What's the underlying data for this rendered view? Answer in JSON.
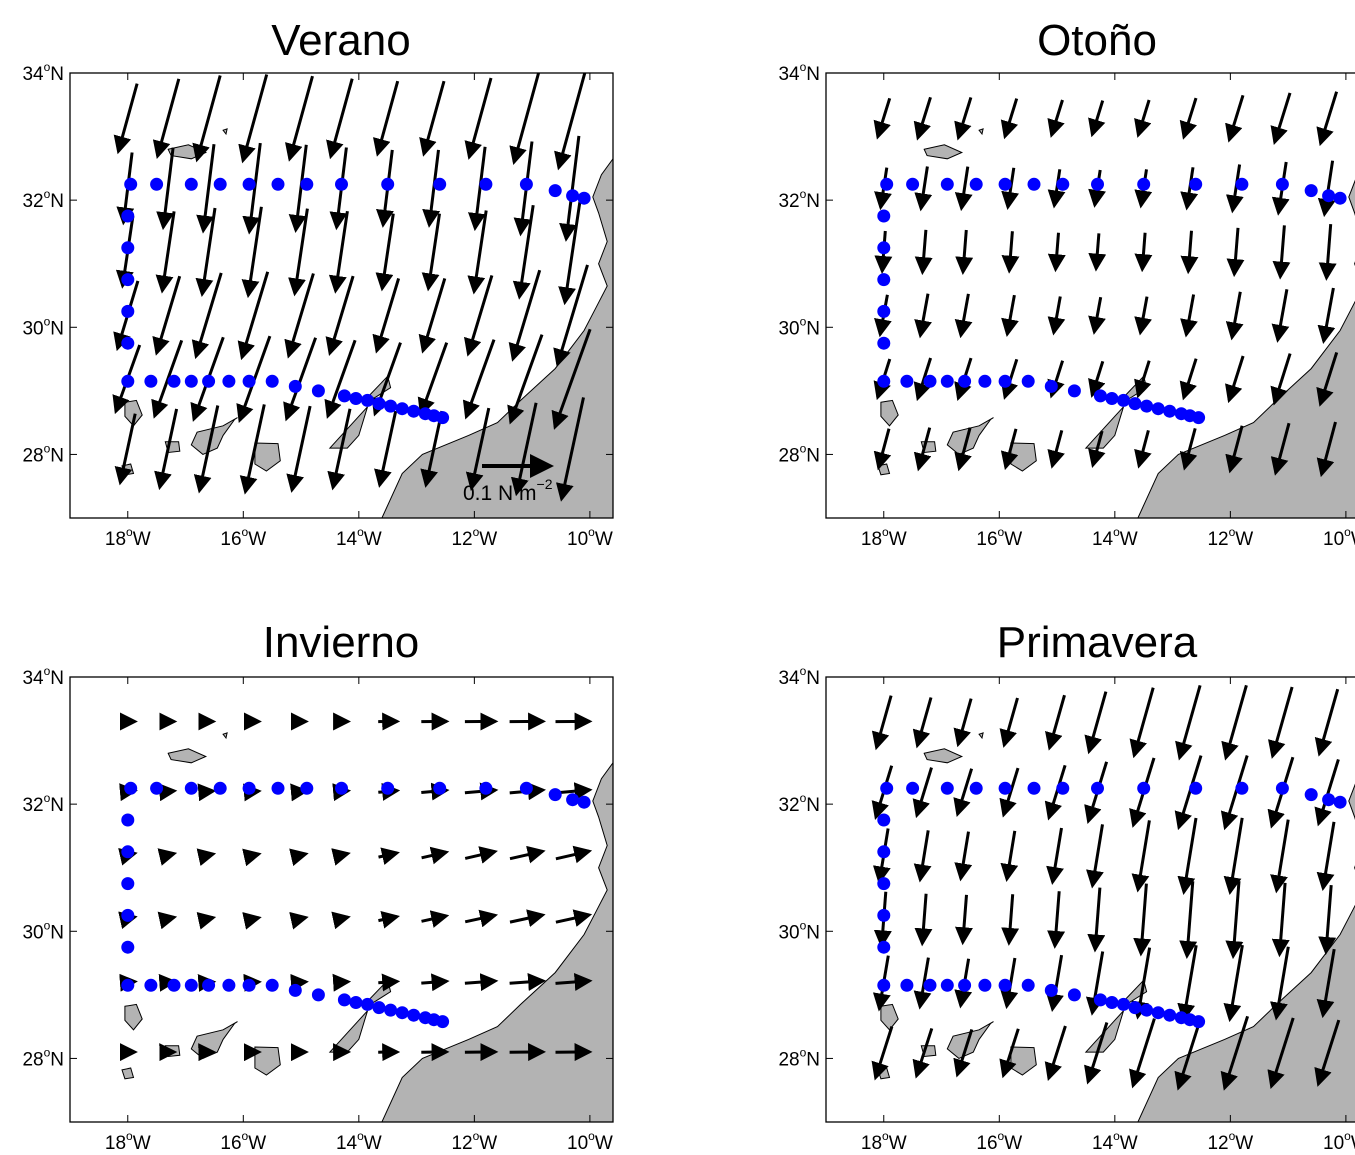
{
  "figure": {
    "scale_label": "0.1 N m",
    "scale_label_exponent": "−2",
    "scale_value_N_per_m2": 0.1,
    "colors": {
      "land": "#b3b3b3",
      "coast": "#000000",
      "stations": "#0000ff",
      "arrows": "#000000"
    }
  },
  "axes": {
    "lon_ticks": [
      {
        "value": -18,
        "deg": "18",
        "dir": "W"
      },
      {
        "value": -16,
        "deg": "16",
        "dir": "W"
      },
      {
        "value": -14,
        "deg": "14",
        "dir": "W"
      },
      {
        "value": -12,
        "deg": "12",
        "dir": "W"
      },
      {
        "value": -10,
        "deg": "10",
        "dir": "W"
      }
    ],
    "lat_ticks": [
      {
        "value": 34,
        "deg": "34",
        "dir": "N"
      },
      {
        "value": 32,
        "deg": "32",
        "dir": "N"
      },
      {
        "value": 30,
        "deg": "30",
        "dir": "N"
      },
      {
        "value": 28,
        "deg": "28",
        "dir": "N"
      }
    ],
    "deg_symbol": "o",
    "lon_range": [
      -19.0,
      -9.6
    ],
    "lat_range": [
      27.0,
      34.0
    ]
  },
  "panels": [
    {
      "id": "verano",
      "title": "Verano",
      "show_scale": true,
      "mean_vector": {
        "u": -0.028,
        "v": -0.12
      }
    },
    {
      "id": "otono",
      "title": "Otoño",
      "show_scale": false,
      "mean_vector": {
        "u": -0.012,
        "v": -0.06
      }
    },
    {
      "id": "invierno",
      "title": "Invierno",
      "show_scale": false,
      "mean_vector": {
        "u": 0.048,
        "v": 0.006
      }
    },
    {
      "id": "primavera",
      "title": "Primavera",
      "show_scale": false,
      "mean_vector": {
        "u": -0.018,
        "v": -0.09
      }
    }
  ],
  "stations": [
    [
      -17.95,
      32.25
    ],
    [
      -17.5,
      32.25
    ],
    [
      -16.9,
      32.25
    ],
    [
      -16.4,
      32.25
    ],
    [
      -15.9,
      32.25
    ],
    [
      -15.4,
      32.25
    ],
    [
      -14.9,
      32.25
    ],
    [
      -14.3,
      32.25
    ],
    [
      -13.5,
      32.25
    ],
    [
      -12.6,
      32.25
    ],
    [
      -11.8,
      32.25
    ],
    [
      -11.1,
      32.25
    ],
    [
      -10.6,
      32.15
    ],
    [
      -10.3,
      32.07
    ],
    [
      -10.1,
      32.03
    ],
    [
      -18.0,
      31.75
    ],
    [
      -18.0,
      31.25
    ],
    [
      -18.0,
      30.75
    ],
    [
      -18.0,
      30.25
    ],
    [
      -18.0,
      29.75
    ],
    [
      -18.0,
      29.15
    ],
    [
      -17.6,
      29.15
    ],
    [
      -17.2,
      29.15
    ],
    [
      -16.9,
      29.15
    ],
    [
      -16.6,
      29.15
    ],
    [
      -16.25,
      29.15
    ],
    [
      -15.9,
      29.15
    ],
    [
      -15.5,
      29.15
    ],
    [
      -15.1,
      29.07
    ],
    [
      -14.7,
      29.0
    ],
    [
      -14.25,
      28.92
    ],
    [
      -14.05,
      28.88
    ],
    [
      -13.85,
      28.85
    ],
    [
      -13.65,
      28.8
    ],
    [
      -13.45,
      28.76
    ],
    [
      -13.25,
      28.72
    ],
    [
      -13.05,
      28.68
    ],
    [
      -12.85,
      28.64
    ],
    [
      -12.7,
      28.61
    ],
    [
      -12.55,
      28.58
    ]
  ],
  "islands": [
    [
      [
        -17.3,
        32.8
      ],
      [
        -16.95,
        32.87
      ],
      [
        -16.65,
        32.75
      ],
      [
        -16.9,
        32.65
      ],
      [
        -17.25,
        32.7
      ]
    ],
    [
      [
        -16.35,
        33.1
      ],
      [
        -16.28,
        33.12
      ],
      [
        -16.3,
        33.04
      ]
    ],
    [
      [
        -18.05,
        28.82
      ],
      [
        -17.85,
        28.85
      ],
      [
        -17.75,
        28.62
      ],
      [
        -17.9,
        28.45
      ],
      [
        -18.05,
        28.6
      ]
    ],
    [
      [
        -17.35,
        28.2
      ],
      [
        -17.12,
        28.2
      ],
      [
        -17.1,
        28.05
      ],
      [
        -17.3,
        28.03
      ]
    ],
    [
      [
        -18.1,
        27.82
      ],
      [
        -17.95,
        27.85
      ],
      [
        -17.9,
        27.7
      ],
      [
        -18.05,
        27.68
      ]
    ],
    [
      [
        -16.15,
        28.55
      ],
      [
        -16.1,
        28.58
      ],
      [
        -16.35,
        28.45
      ],
      [
        -16.8,
        28.35
      ],
      [
        -16.9,
        28.15
      ],
      [
        -16.7,
        28.0
      ],
      [
        -16.45,
        28.1
      ],
      [
        -16.35,
        28.3
      ]
    ],
    [
      [
        -15.8,
        28.18
      ],
      [
        -15.4,
        28.17
      ],
      [
        -15.36,
        27.9
      ],
      [
        -15.6,
        27.74
      ],
      [
        -15.8,
        27.85
      ]
    ],
    [
      [
        -14.5,
        28.1
      ],
      [
        -14.0,
        28.6
      ],
      [
        -13.85,
        28.75
      ],
      [
        -14.0,
        28.3
      ],
      [
        -14.2,
        28.1
      ]
    ],
    [
      [
        -13.9,
        28.85
      ],
      [
        -13.5,
        29.23
      ],
      [
        -13.45,
        29.05
      ],
      [
        -13.8,
        28.85
      ]
    ]
  ],
  "mainland": [
    [
      -9.6,
      32.65
    ],
    [
      -9.8,
      32.4
    ],
    [
      -9.95,
      32.05
    ],
    [
      -9.85,
      31.8
    ],
    [
      -9.7,
      31.35
    ],
    [
      -9.85,
      31.0
    ],
    [
      -9.7,
      30.65
    ],
    [
      -9.9,
      30.3
    ],
    [
      -10.1,
      29.95
    ],
    [
      -10.6,
      29.35
    ],
    [
      -11.2,
      28.85
    ],
    [
      -11.6,
      28.5
    ],
    [
      -12.1,
      28.3
    ],
    [
      -12.9,
      28.0
    ],
    [
      -13.25,
      27.7
    ],
    [
      -13.6,
      27.0
    ],
    [
      -9.6,
      27.0
    ]
  ]
}
